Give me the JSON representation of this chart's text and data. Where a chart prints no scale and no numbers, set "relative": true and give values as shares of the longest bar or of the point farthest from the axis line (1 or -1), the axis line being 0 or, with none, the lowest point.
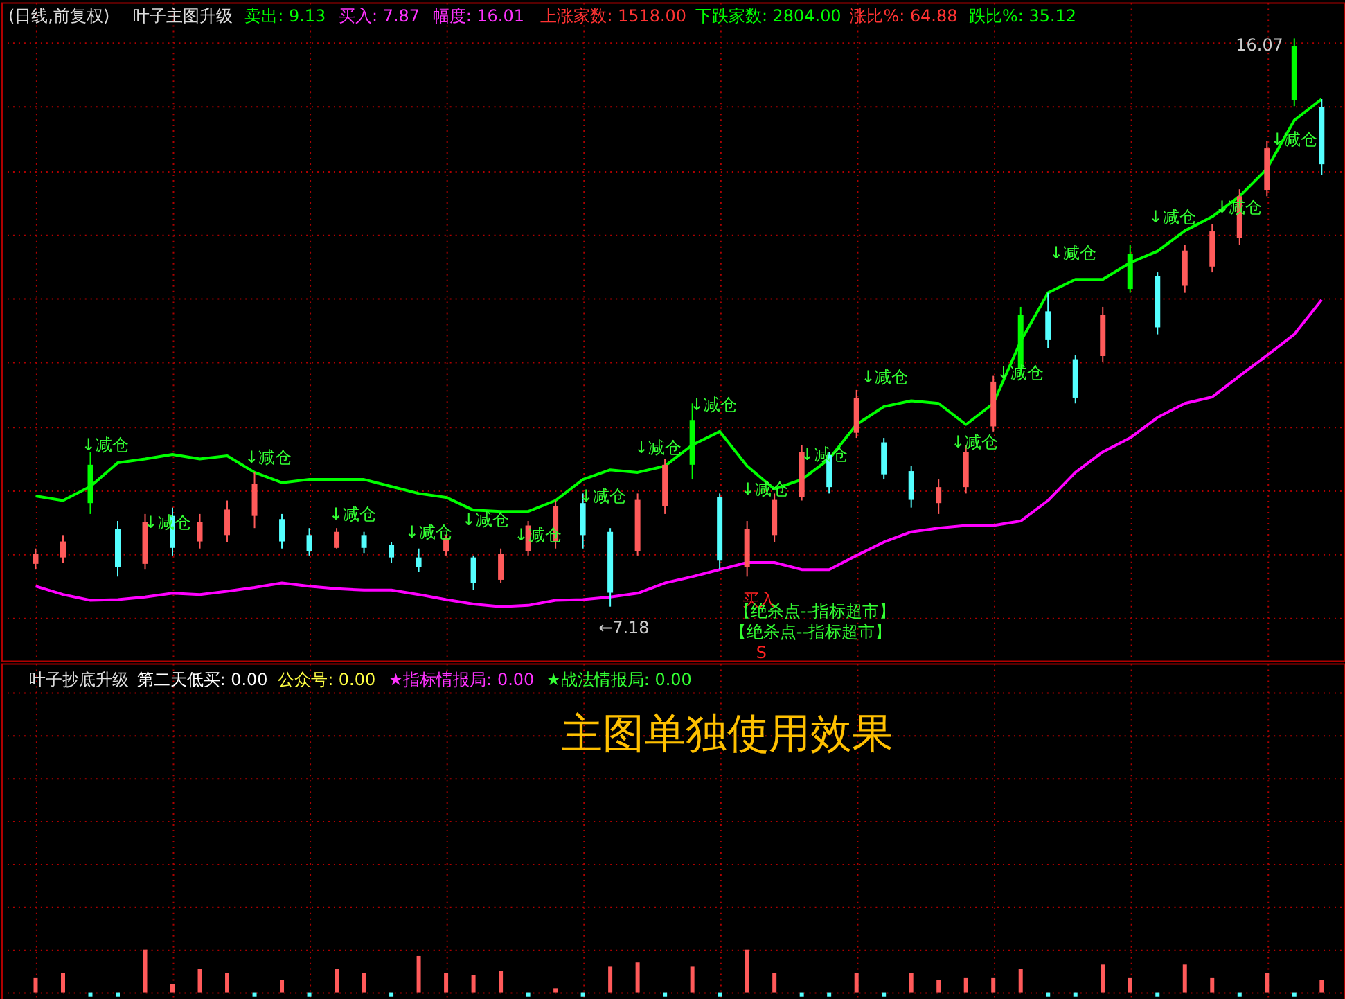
{
  "chart_data": [
    {
      "type": "candlestick",
      "title": "叶子主图升级",
      "subtitle": "(日线,前复权)",
      "categories": [
        null,
        null,
        null,
        null,
        null,
        null,
        null,
        null,
        null,
        null,
        null,
        null,
        null,
        null,
        null,
        null,
        null,
        null,
        null,
        null,
        null,
        null,
        null,
        null,
        null,
        null,
        null,
        null,
        null,
        null,
        null,
        null,
        null,
        null,
        null,
        null,
        null,
        null,
        null,
        null,
        null,
        null,
        null,
        null,
        null,
        null,
        null,
        null
      ],
      "ohlc": [
        [
          7.85,
          8.09,
          7.76,
          8.0
        ],
        [
          7.95,
          8.3,
          7.87,
          8.2
        ],
        [
          8.8,
          9.6,
          8.63,
          9.4
        ],
        [
          8.4,
          8.52,
          7.65,
          7.8
        ],
        [
          7.85,
          8.63,
          7.76,
          8.5
        ],
        [
          8.6,
          8.73,
          7.98,
          8.1
        ],
        [
          8.2,
          8.63,
          8.09,
          8.5
        ],
        [
          8.3,
          8.84,
          8.19,
          8.7
        ],
        [
          8.6,
          9.28,
          8.41,
          9.1
        ],
        [
          8.55,
          8.63,
          8.09,
          8.2
        ],
        [
          8.3,
          8.41,
          7.98,
          8.05
        ],
        [
          8.1,
          8.41,
          8.09,
          8.35
        ],
        [
          8.3,
          8.35,
          8.02,
          8.1
        ],
        [
          8.15,
          8.19,
          7.87,
          7.95
        ],
        [
          7.95,
          8.09,
          7.72,
          7.8
        ],
        [
          8.05,
          8.3,
          7.98,
          8.25
        ],
        [
          7.95,
          7.98,
          7.44,
          7.55
        ],
        [
          7.6,
          8.09,
          7.55,
          8.0
        ],
        [
          8.05,
          8.52,
          7.98,
          8.45
        ],
        [
          8.2,
          8.84,
          8.09,
          8.75
        ],
        [
          8.8,
          8.95,
          8.09,
          8.3
        ],
        [
          8.35,
          8.41,
          7.18,
          7.4
        ],
        [
          8.05,
          8.95,
          7.98,
          8.85
        ],
        [
          8.75,
          9.49,
          8.63,
          9.4
        ],
        [
          9.4,
          10.36,
          9.17,
          10.1
        ],
        [
          8.9,
          8.95,
          7.76,
          7.9
        ],
        [
          7.8,
          8.52,
          7.65,
          8.4
        ],
        [
          8.3,
          8.95,
          8.19,
          8.85
        ],
        [
          8.9,
          9.71,
          8.84,
          9.6
        ],
        [
          9.55,
          9.6,
          8.95,
          9.05
        ],
        [
          9.9,
          10.57,
          9.82,
          10.45
        ],
        [
          9.75,
          9.82,
          9.17,
          9.25
        ],
        [
          9.3,
          9.38,
          8.73,
          8.85
        ],
        [
          8.8,
          9.17,
          8.63,
          9.05
        ],
        [
          9.05,
          9.71,
          8.95,
          9.6
        ],
        [
          10.0,
          10.79,
          9.92,
          10.7
        ],
        [
          10.9,
          11.87,
          10.79,
          11.75
        ],
        [
          11.8,
          12.09,
          11.22,
          11.35
        ],
        [
          11.05,
          11.11,
          10.36,
          10.45
        ],
        [
          11.1,
          11.87,
          11.01,
          11.75
        ],
        [
          12.15,
          12.84,
          12.09,
          12.7
        ],
        [
          12.35,
          12.41,
          11.44,
          11.55
        ],
        [
          12.2,
          12.84,
          12.09,
          12.75
        ],
        [
          12.5,
          13.17,
          12.41,
          13.05
        ],
        [
          12.95,
          13.71,
          12.84,
          13.6
        ],
        [
          13.7,
          14.47,
          13.6,
          14.35
        ],
        [
          15.1,
          16.07,
          15.01,
          15.95
        ],
        [
          15.0,
          15.12,
          13.93,
          14.1
        ]
      ],
      "colors": [
        "#ff5a5a",
        "#ff5a5a",
        "#00ff00",
        "#54ffff",
        "#ff5a5a",
        "#54ffff",
        "#ff5a5a",
        "#ff5a5a",
        "#ff5a5a",
        "#54ffff",
        "#54ffff",
        "#ff5a5a",
        "#54ffff",
        "#54ffff",
        "#54ffff",
        "#ff5a5a",
        "#54ffff",
        "#ff5a5a",
        "#ff5a5a",
        "#ff5a5a",
        "#54ffff",
        "#54ffff",
        "#ff5a5a",
        "#ff5a5a",
        "#00ff00",
        "#54ffff",
        "#ff5a5a",
        "#ff5a5a",
        "#ff5a5a",
        "#54ffff",
        "#ff5a5a",
        "#54ffff",
        "#54ffff",
        "#ff5a5a",
        "#ff5a5a",
        "#ff5a5a",
        "#00ff00",
        "#54ffff",
        "#54ffff",
        "#ff5a5a",
        "#00ff00",
        "#54ffff",
        "#ff5a5a",
        "#ff5a5a",
        "#ff5a5a",
        "#ff5a5a",
        "#00ff00",
        "#54ffff"
      ],
      "series": [
        {
          "type": "line",
          "color": "#00ff00",
          "values": [
            8.91,
            8.84,
            9.06,
            9.43,
            9.49,
            9.56,
            9.49,
            9.54,
            9.28,
            9.12,
            9.17,
            9.17,
            9.17,
            9.06,
            8.95,
            8.89,
            8.69,
            8.67,
            8.67,
            8.84,
            9.17,
            9.32,
            9.28,
            9.38,
            9.71,
            9.92,
            9.38,
            9.02,
            9.17,
            9.49,
            10.03,
            10.31,
            10.4,
            10.36,
            10.03,
            10.36,
            11.33,
            12.09,
            12.3,
            12.3,
            12.56,
            12.74,
            13.06,
            13.28,
            13.6,
            14.03,
            14.79,
            15.12
          ]
        },
        {
          "type": "line",
          "color": "#ff00ff",
          "values": [
            7.5,
            7.37,
            7.28,
            7.29,
            7.33,
            7.39,
            7.37,
            7.42,
            7.48,
            7.55,
            7.5,
            7.46,
            7.44,
            7.44,
            7.37,
            7.29,
            7.22,
            7.18,
            7.2,
            7.28,
            7.29,
            7.33,
            7.39,
            7.55,
            7.65,
            7.76,
            7.87,
            7.87,
            7.76,
            7.76,
            7.98,
            8.19,
            8.35,
            8.41,
            8.45,
            8.45,
            8.52,
            8.84,
            9.28,
            9.6,
            9.82,
            10.14,
            10.36,
            10.46,
            10.79,
            11.11,
            11.44,
            11.98
          ]
        }
      ],
      "annotations": [
        "卖出: 9.13",
        "买入: 7.87",
        "幅度: 16.01",
        "上涨家数: 1518.00",
        "下跌家数: 2804.00",
        "涨比%: 64.88",
        "跌比%: 35.12",
        "↓减仓",
        "↓减仓",
        "↓减仓",
        "↓减仓",
        "↓减仓",
        "↓减仓",
        "↓减仓",
        "↓减仓",
        "↓减仓",
        "↓减仓",
        "↓减仓",
        "↓减仓",
        "↓减仓",
        "↓减仓",
        "↓减仓",
        "↓减仓",
        "↓减仓",
        "↓减仓",
        "↓减仓",
        "←7.18",
        "16.07",
        "买入",
        "【绝杀点--指标超市】",
        "【绝杀点--指标超市】",
        "S"
      ],
      "grid": true,
      "tick_labels": false
    },
    {
      "type": "bar",
      "title": "叶子抄底升级",
      "relative": true,
      "categories": [
        null,
        null,
        null,
        null,
        null,
        null,
        null,
        null,
        null,
        null,
        null,
        null,
        null,
        null,
        null,
        null,
        null,
        null,
        null,
        null,
        null,
        null,
        null,
        null,
        null,
        null,
        null,
        null,
        null,
        null,
        null,
        null,
        null,
        null,
        null,
        null,
        null,
        null,
        null,
        null,
        null,
        null,
        null,
        null,
        null,
        null,
        null,
        null
      ],
      "values": [
        0.35,
        0.45,
        -0.1,
        -0.1,
        1.0,
        0.2,
        0.55,
        0.45,
        -0.1,
        0.3,
        -0.1,
        0.55,
        0.45,
        -0.1,
        0.85,
        0.45,
        0.4,
        0.5,
        -0.1,
        0.1,
        -0.1,
        0.6,
        0.7,
        -0.1,
        0.6,
        -0.1,
        1.0,
        0.45,
        -0.1,
        -0.1,
        0.45,
        -0.1,
        0.45,
        0.3,
        0.35,
        0.35,
        0.55,
        -0.1,
        -0.1,
        0.65,
        0.35,
        -0.1,
        0.65,
        0.35,
        -0.1,
        0.45,
        -0.1,
        0.3
      ],
      "colors": [
        "#ff5a5a",
        "#ff5a5a",
        "#54ffff",
        "#54ffff",
        "#ff5a5a",
        "#ff5a5a",
        "#ff5a5a",
        "#ff5a5a",
        "#54ffff",
        "#ff5a5a",
        "#54ffff",
        "#ff5a5a",
        "#ff5a5a",
        "#54ffff",
        "#ff5a5a",
        "#ff5a5a",
        "#ff5a5a",
        "#ff5a5a",
        "#54ffff",
        "#ff5a5a",
        "#54ffff",
        "#ff5a5a",
        "#ff5a5a",
        "#54ffff",
        "#ff5a5a",
        "#54ffff",
        "#ff5a5a",
        "#ff5a5a",
        "#54ffff",
        "#54ffff",
        "#ff5a5a",
        "#54ffff",
        "#ff5a5a",
        "#ff5a5a",
        "#ff5a5a",
        "#ff5a5a",
        "#ff5a5a",
        "#54ffff",
        "#54ffff",
        "#ff5a5a",
        "#ff5a5a",
        "#54ffff",
        "#ff5a5a",
        "#ff5a5a",
        "#54ffff",
        "#ff5a5a",
        "#54ffff",
        "#ff5a5a"
      ],
      "annotations": [
        "第二天低买: 0.00",
        "公众号: 0.00",
        "★指标情报局: 0.00",
        "★战法情报局: 0.00",
        "主图单独使用效果"
      ],
      "grid": true,
      "tick_labels": false
    }
  ]
}
